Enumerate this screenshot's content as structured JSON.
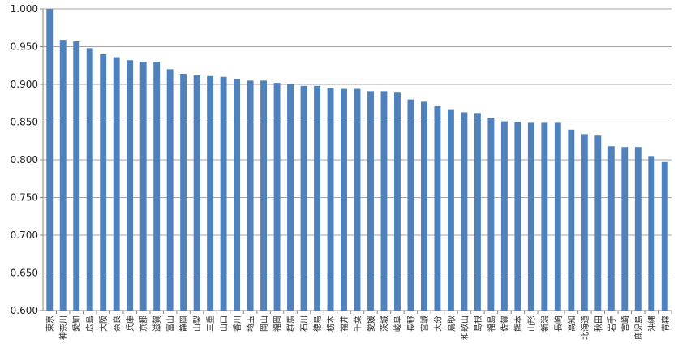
{
  "chart_data": {
    "type": "bar",
    "title": "",
    "xlabel": "",
    "ylabel": "",
    "ylim": [
      0.6,
      1.0
    ],
    "yticks": [
      "0.600",
      "0.650",
      "0.700",
      "0.750",
      "0.800",
      "0.850",
      "0.900",
      "0.950",
      "1.000"
    ],
    "grid": true,
    "bar_color": "#4f81bd",
    "categories": [
      "東京",
      "神奈川",
      "愛知",
      "広島",
      "大阪",
      "奈良",
      "兵庫",
      "京都",
      "滋賀",
      "富山",
      "静岡",
      "山梨",
      "三重",
      "山口",
      "香川",
      "埼玉",
      "岡山",
      "福岡",
      "群馬",
      "石川",
      "徳島",
      "栃木",
      "福井",
      "千葉",
      "愛媛",
      "茨城",
      "岐阜",
      "長野",
      "宮城",
      "大分",
      "鳥取",
      "和歌山",
      "島根",
      "福島",
      "佐賀",
      "熊本",
      "山形",
      "新潟",
      "長崎",
      "高知",
      "北海道",
      "秋田",
      "岩手",
      "宮崎",
      "鹿児島",
      "沖縄",
      "青森"
    ],
    "values": [
      1.0,
      0.959,
      0.957,
      0.948,
      0.94,
      0.936,
      0.932,
      0.93,
      0.93,
      0.92,
      0.914,
      0.912,
      0.911,
      0.91,
      0.907,
      0.905,
      0.905,
      0.902,
      0.901,
      0.898,
      0.898,
      0.895,
      0.894,
      0.894,
      0.891,
      0.891,
      0.889,
      0.88,
      0.877,
      0.871,
      0.866,
      0.863,
      0.862,
      0.855,
      0.851,
      0.85,
      0.849,
      0.849,
      0.849,
      0.84,
      0.834,
      0.832,
      0.818,
      0.817,
      0.817,
      0.805,
      0.797
    ]
  }
}
